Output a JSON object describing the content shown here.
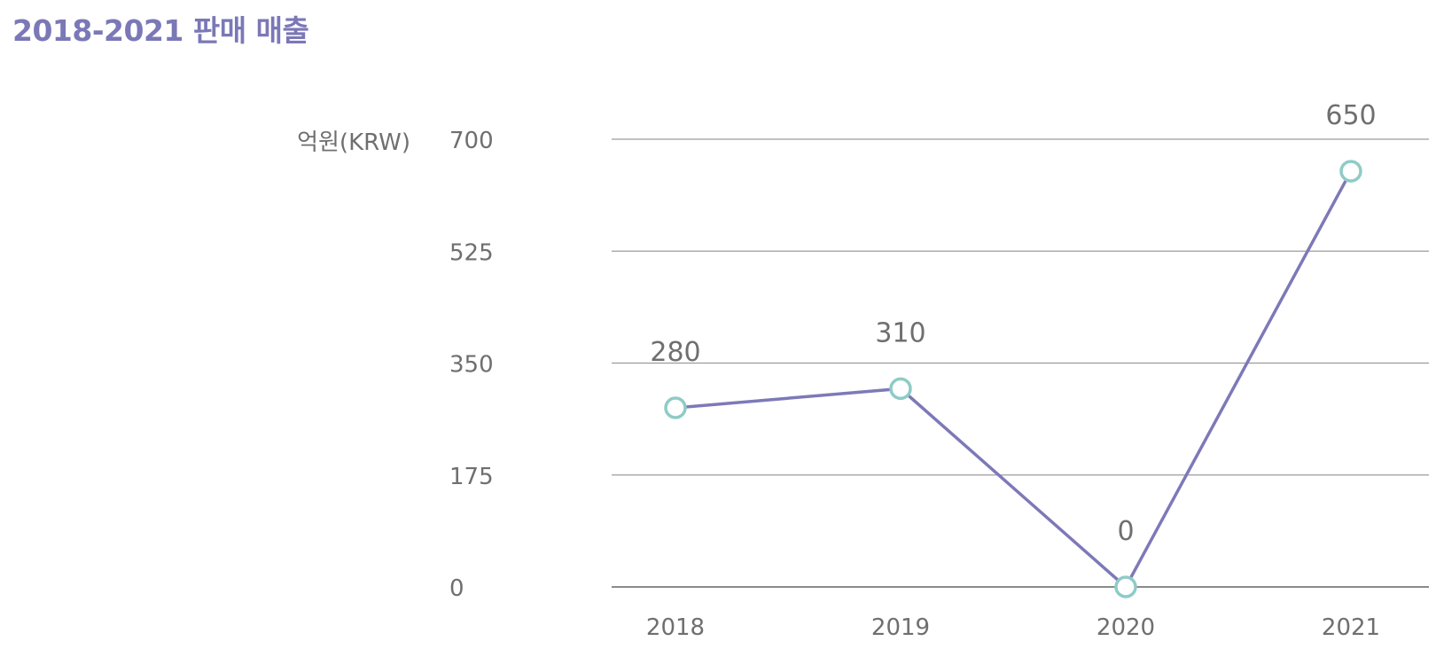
{
  "title": "2018-2021 판매 매출",
  "colors": {
    "title": "#7b78b7",
    "line": "#7d79b8",
    "marker": "#8fcbc6",
    "text": "#6f6f6f",
    "grid": "#9c9c9c"
  },
  "chart_data": {
    "type": "line",
    "title": "2018-2021 판매 매출",
    "xlabel": "",
    "ylabel": "억원(KRW)",
    "categories": [
      "2018",
      "2019",
      "2020",
      "2021"
    ],
    "series": [
      {
        "values": [
          280,
          310,
          0,
          650
        ]
      }
    ],
    "data_labels": [
      "280",
      "310",
      "0",
      "650"
    ],
    "ylim": [
      0,
      700
    ],
    "yticks": [
      0,
      175,
      350,
      525,
      700
    ],
    "ytick_labels": [
      "0",
      "175",
      "350",
      "525",
      "700"
    ],
    "grid": true,
    "legend": "none"
  }
}
